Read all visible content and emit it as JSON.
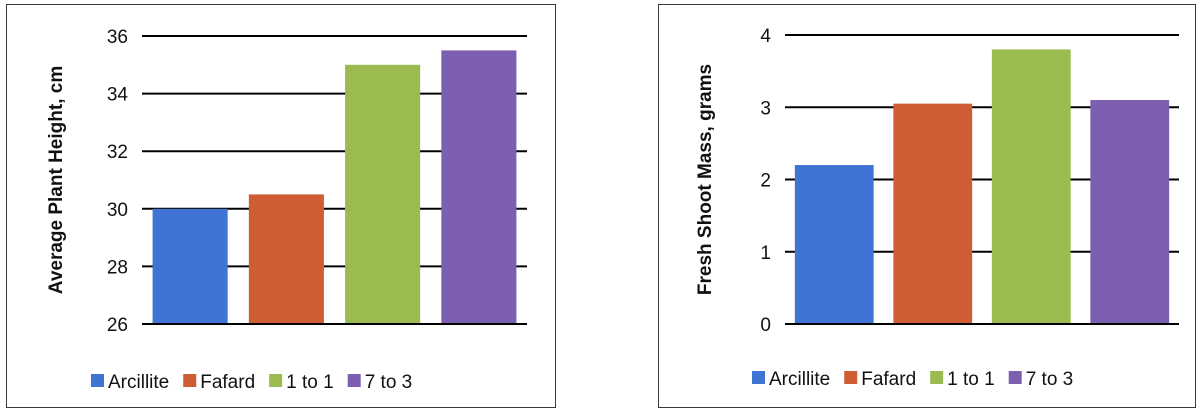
{
  "chart_data": [
    {
      "type": "bar",
      "categories": [
        "Arcillite",
        "Fafard",
        "1 to 1",
        "7 to 3"
      ],
      "values": [
        30.0,
        30.5,
        35.0,
        35.5
      ],
      "title": "",
      "xlabel": "",
      "ylabel": "Average Plant Height, cm",
      "ylim": [
        26,
        36
      ],
      "yticks": [
        26,
        28,
        30,
        32,
        34,
        36
      ],
      "grid": true,
      "legend": "bottom",
      "colors": [
        "#3f73d4",
        "#cf5d33",
        "#99bb4f",
        "#7d5fb2"
      ]
    },
    {
      "type": "bar",
      "categories": [
        "Arcillite",
        "Fafard",
        "1 to 1",
        "7 to 3"
      ],
      "values": [
        2.2,
        3.05,
        3.8,
        3.1
      ],
      "title": "",
      "xlabel": "",
      "ylabel": "Fresh Shoot Mass, grams",
      "ylim": [
        0,
        4
      ],
      "yticks": [
        0,
        1,
        2,
        3,
        4
      ],
      "grid": true,
      "legend": "bottom",
      "colors": [
        "#3f73d4",
        "#cf5d33",
        "#99bb4f",
        "#7d5fb2"
      ]
    }
  ]
}
